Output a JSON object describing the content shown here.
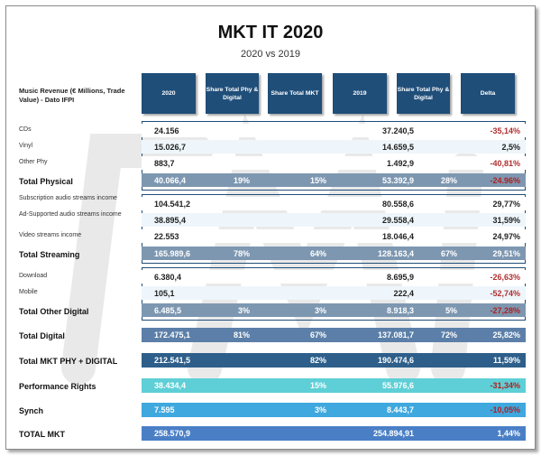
{
  "title": "MKT IT 2020",
  "subtitle": "2020 vs 2019",
  "header_label": "Music Revenue (€ Millions, Trade Value) - Dato IFPI",
  "columns": [
    "2020",
    "Share Total Phy & Digital",
    "Share Total MKT",
    "2019",
    "Share Total Phy & Digital",
    "Delta"
  ],
  "rows": [
    {
      "label": "CDs",
      "v2020": "24.156",
      "sh1": "",
      "sh2": "",
      "v2019": "37.240,5",
      "sh3": "",
      "delta": "-35,14%"
    },
    {
      "label": "Vinyl",
      "v2020": "15.026,7",
      "sh1": "",
      "sh2": "",
      "v2019": "14.659,5",
      "sh3": "",
      "delta": "2,5%"
    },
    {
      "label": "Other Phy",
      "v2020": "883,7",
      "sh1": "",
      "sh2": "",
      "v2019": "1.492,9",
      "sh3": "",
      "delta": "-40,81%"
    },
    {
      "label": "Total Physical",
      "v2020": "40.066,4",
      "sh1": "19%",
      "sh2": "15%",
      "v2019": "53.392,9",
      "sh3": "28%",
      "delta": "-24.96%"
    },
    {
      "label": "Subscription audio streams income",
      "v2020": "104.541,2",
      "sh1": "",
      "sh2": "",
      "v2019": "80.558,6",
      "sh3": "",
      "delta": "29,77%"
    },
    {
      "label": "Ad-Supported audio streams income",
      "v2020": "38.895,4",
      "sh1": "",
      "sh2": "",
      "v2019": "29.558,4",
      "sh3": "",
      "delta": "31,59%"
    },
    {
      "label": "Video streams income",
      "v2020": "22.553",
      "sh1": "",
      "sh2": "",
      "v2019": "18.046,4",
      "sh3": "",
      "delta": "24,97%"
    },
    {
      "label": "Total Streaming",
      "v2020": "165.989,6",
      "sh1": "78%",
      "sh2": "64%",
      "v2019": "128.163,4",
      "sh3": "67%",
      "delta": "29,51%"
    },
    {
      "label": "Download",
      "v2020": "6.380,4",
      "sh1": "",
      "sh2": "",
      "v2019": "8.695,9",
      "sh3": "",
      "delta": "-26,63%"
    },
    {
      "label": "Mobile",
      "v2020": "105,1",
      "sh1": "",
      "sh2": "",
      "v2019": "222,4",
      "sh3": "",
      "delta": "-52,74%"
    },
    {
      "label": "Total Other Digital",
      "v2020": "6.485,5",
      "sh1": "3%",
      "sh2": "3%",
      "v2019": "8.918,3",
      "sh3": "5%",
      "delta": "-27,28%"
    },
    {
      "label": "Total Digital",
      "v2020": "172.475,1",
      "sh1": "81%",
      "sh2": "67%",
      "v2019": "137.081,7",
      "sh3": "72%",
      "delta": "25,82%"
    },
    {
      "label": "Total MKT PHY + DIGITAL",
      "v2020": "212.541,5",
      "sh1": "",
      "sh2": "82%",
      "v2019": "190.474,6",
      "sh3": "",
      "delta": "11,59%"
    },
    {
      "label": "Performance Rights",
      "v2020": "38.434,4",
      "sh1": "",
      "sh2": "15%",
      "v2019": "55.976,6",
      "sh3": "",
      "delta": "-31,34%"
    },
    {
      "label": "Synch",
      "v2020": "7.595",
      "sh1": "",
      "sh2": "3%",
      "v2019": "8.443,7",
      "sh3": "",
      "delta": "-10,05%"
    },
    {
      "label": "TOTAL MKT",
      "v2020": "258.570,9",
      "sh1": "",
      "sh2": "",
      "v2019": "254.894,91",
      "sh3": "",
      "delta": "1,44%"
    }
  ],
  "watermark": "FIMI",
  "colors": {
    "header": "#1f4e79",
    "negative": "#b03030",
    "performance": "#5ecfd6",
    "synch": "#3fa8de",
    "total_mkt": "#4a7fc6"
  }
}
